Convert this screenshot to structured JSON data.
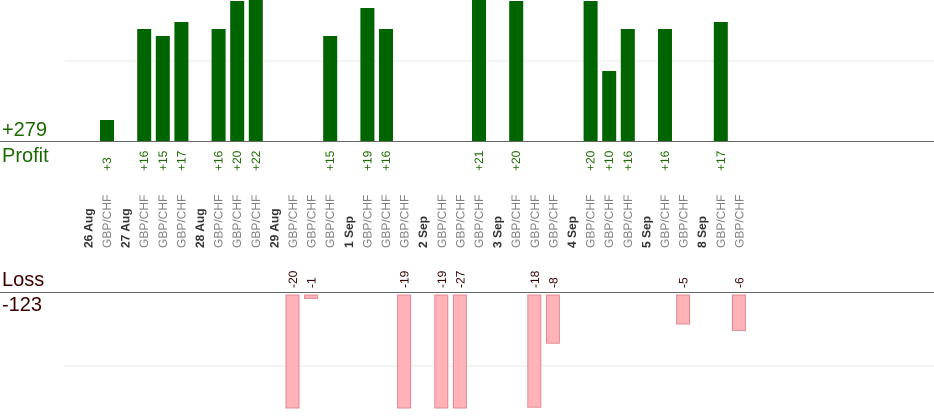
{
  "summary": {
    "profit_total": "+279",
    "profit_label": "Profit",
    "loss_label": "Loss",
    "loss_total": "-123"
  },
  "colors": {
    "profit_bar": "#006400",
    "profit_text": "#1b6a00",
    "loss_bar": "#ffb3b8",
    "loss_bar_border": "#e08890",
    "loss_text": "#3a0000",
    "date_text": "#333333",
    "pair_text": "#808080",
    "axis": "#666666",
    "grid": "#e8e8e8"
  },
  "chart_data": {
    "type": "bar",
    "dates": [
      {
        "label": "26 Aug",
        "trades": [
          {
            "pair": "GBP/CHF",
            "value": 3
          }
        ]
      },
      {
        "label": "27 Aug",
        "trades": [
          {
            "pair": "GBP/CHF",
            "value": 16
          },
          {
            "pair": "GBP/CHF",
            "value": 15
          },
          {
            "pair": "GBP/CHF",
            "value": 17
          }
        ]
      },
      {
        "label": "28 Aug",
        "trades": [
          {
            "pair": "GBP/CHF",
            "value": 16
          },
          {
            "pair": "GBP/CHF",
            "value": 20
          },
          {
            "pair": "GBP/CHF",
            "value": 22
          }
        ]
      },
      {
        "label": "29 Aug",
        "trades": [
          {
            "pair": "GBP/CHF",
            "value": -20
          },
          {
            "pair": "GBP/CHF",
            "value": -1
          },
          {
            "pair": "GBP/CHF",
            "value": 15
          }
        ]
      },
      {
        "label": "1 Sep",
        "trades": [
          {
            "pair": "GBP/CHF",
            "value": 19
          },
          {
            "pair": "GBP/CHF",
            "value": 16
          },
          {
            "pair": "GBP/CHF",
            "value": -19
          }
        ]
      },
      {
        "label": "2 Sep",
        "trades": [
          {
            "pair": "GBP/CHF",
            "value": -19
          },
          {
            "pair": "GBP/CHF",
            "value": -27
          },
          {
            "pair": "GBP/CHF",
            "value": 21
          }
        ]
      },
      {
        "label": "3 Sep",
        "trades": [
          {
            "pair": "GBP/CHF",
            "value": 20
          },
          {
            "pair": "GBP/CHF",
            "value": -18
          },
          {
            "pair": "GBP/CHF",
            "value": -8
          }
        ]
      },
      {
        "label": "4 Sep",
        "trades": [
          {
            "pair": "GBP/CHF",
            "value": 20
          },
          {
            "pair": "GBP/CHF",
            "value": 10
          },
          {
            "pair": "GBP/CHF",
            "value": 16
          }
        ]
      },
      {
        "label": "5 Sep",
        "trades": [
          {
            "pair": "GBP/CHF",
            "value": 16
          },
          {
            "pair": "GBP/CHF",
            "value": -5
          }
        ]
      },
      {
        "label": "8 Sep",
        "trades": [
          {
            "pair": "GBP/CHF",
            "value": 17
          },
          {
            "pair": "GBP/CHF",
            "value": -6
          }
        ]
      }
    ],
    "profit_ylim": [
      0,
      20
    ],
    "loss_ylim": [
      0,
      18
    ],
    "grid": true
  }
}
